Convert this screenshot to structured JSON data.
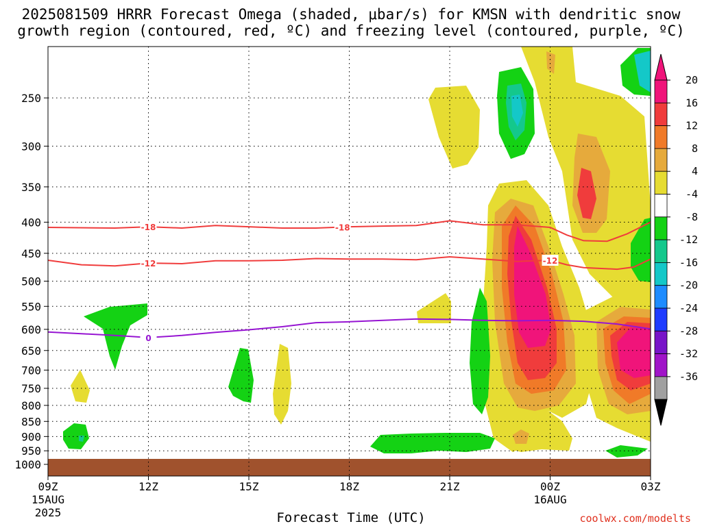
{
  "title_line1": "2025081509 HRRR Forecast Omega (shaded, μbar/s) for KMSN with dendritic snow",
  "title_line2": "growth region (contoured, red, ºC) and freezing level (contoured, purple, ºC)",
  "x_axis_title": "Forecast Time (UTC)",
  "credit": "coolwx.com/modelts",
  "chart_data": {
    "type": "heatmap",
    "title": "2025081509 HRRR Forecast Omega (shaded, μbar/s) for KMSN with dendritic snow growth region (contoured, red, ºC) and freezing level (contoured, purple, ºC)",
    "xlabel": "Forecast Time (UTC)",
    "ylabel": "",
    "y_scale": "log-pressure (hPa), inverted",
    "ylim": [
      1000,
      200
    ],
    "xlim_hours": [
      9,
      27
    ],
    "y_ticks": [
      250,
      300,
      350,
      400,
      450,
      500,
      550,
      600,
      650,
      700,
      750,
      800,
      850,
      900,
      950,
      1000
    ],
    "x_ticks": [
      {
        "hour": 9,
        "label": "09Z",
        "sub1": "15AUG",
        "sub2": "2025"
      },
      {
        "hour": 12,
        "label": "12Z",
        "sub1": "",
        "sub2": ""
      },
      {
        "hour": 15,
        "label": "15Z",
        "sub1": "",
        "sub2": ""
      },
      {
        "hour": 18,
        "label": "18Z",
        "sub1": "",
        "sub2": ""
      },
      {
        "hour": 21,
        "label": "21Z",
        "sub1": "",
        "sub2": ""
      },
      {
        "hour": 24,
        "label": "00Z",
        "sub1": "16AUG",
        "sub2": ""
      },
      {
        "hour": 27,
        "label": "03Z",
        "sub1": "",
        "sub2": ""
      }
    ],
    "grid": "dotted",
    "ground_below_hPa": 980,
    "colorbar": {
      "labels": [
        20,
        16,
        12,
        8,
        4,
        -4,
        -8,
        -12,
        -16,
        -20,
        -24,
        -28,
        -32,
        -36
      ],
      "colors": [
        "#f0147a",
        "#f03c3c",
        "#f07a28",
        "#e6aa3c",
        "#e6dc32",
        "#ffffff",
        "#14d214",
        "#14c88c",
        "#14c8c8",
        "#1e8cff",
        "#1e3cff",
        "#7814c8",
        "#a014c8",
        "#a0a0a0"
      ],
      "over_color": "#f0147a",
      "under_color": "#000000"
    },
    "series": [
      {
        "name": "-18",
        "color": "#f03c3c",
        "points": [
          [
            9,
            408
          ],
          [
            11,
            409
          ],
          [
            12,
            407
          ],
          [
            13,
            409
          ],
          [
            14,
            405
          ],
          [
            15,
            407
          ],
          [
            16,
            409
          ],
          [
            17,
            409
          ],
          [
            18,
            407
          ],
          [
            19,
            406
          ],
          [
            20,
            405
          ],
          [
            21,
            398
          ],
          [
            22,
            404
          ],
          [
            23,
            404
          ],
          [
            24,
            408
          ],
          [
            24.5,
            420
          ],
          [
            25,
            429
          ],
          [
            25.7,
            430
          ],
          [
            26.3,
            418
          ],
          [
            27,
            400
          ]
        ]
      },
      {
        "name": "-12",
        "color": "#f03c3c",
        "points": [
          [
            9,
            462
          ],
          [
            10,
            470
          ],
          [
            11,
            472
          ],
          [
            12,
            467
          ],
          [
            13,
            468
          ],
          [
            14,
            463
          ],
          [
            15,
            463
          ],
          [
            16,
            462
          ],
          [
            17,
            459
          ],
          [
            18,
            460
          ],
          [
            19,
            460
          ],
          [
            20,
            461
          ],
          [
            21,
            456
          ],
          [
            22,
            460
          ],
          [
            23,
            464
          ],
          [
            24,
            462
          ],
          [
            24.5,
            470
          ],
          [
            25,
            475
          ],
          [
            26,
            478
          ],
          [
            26.5,
            474
          ],
          [
            27,
            460
          ]
        ]
      },
      {
        "name": "0",
        "color": "#9614d2",
        "points": [
          [
            9,
            606
          ],
          [
            10,
            610
          ],
          [
            11,
            614
          ],
          [
            12,
            619
          ],
          [
            13,
            614
          ],
          [
            14,
            607
          ],
          [
            15,
            601
          ],
          [
            16,
            594
          ],
          [
            17,
            585
          ],
          [
            18,
            583
          ],
          [
            19,
            580
          ],
          [
            20,
            577
          ],
          [
            21,
            578
          ],
          [
            22,
            580
          ],
          [
            23,
            581
          ],
          [
            24,
            580
          ],
          [
            25,
            582
          ],
          [
            26,
            588
          ],
          [
            27,
            599
          ]
        ]
      }
    ],
    "shaded_regions_note": "omega shading: yellow/orange/red/magenta = positive (sinking), green/cyan = negative (rising)"
  }
}
